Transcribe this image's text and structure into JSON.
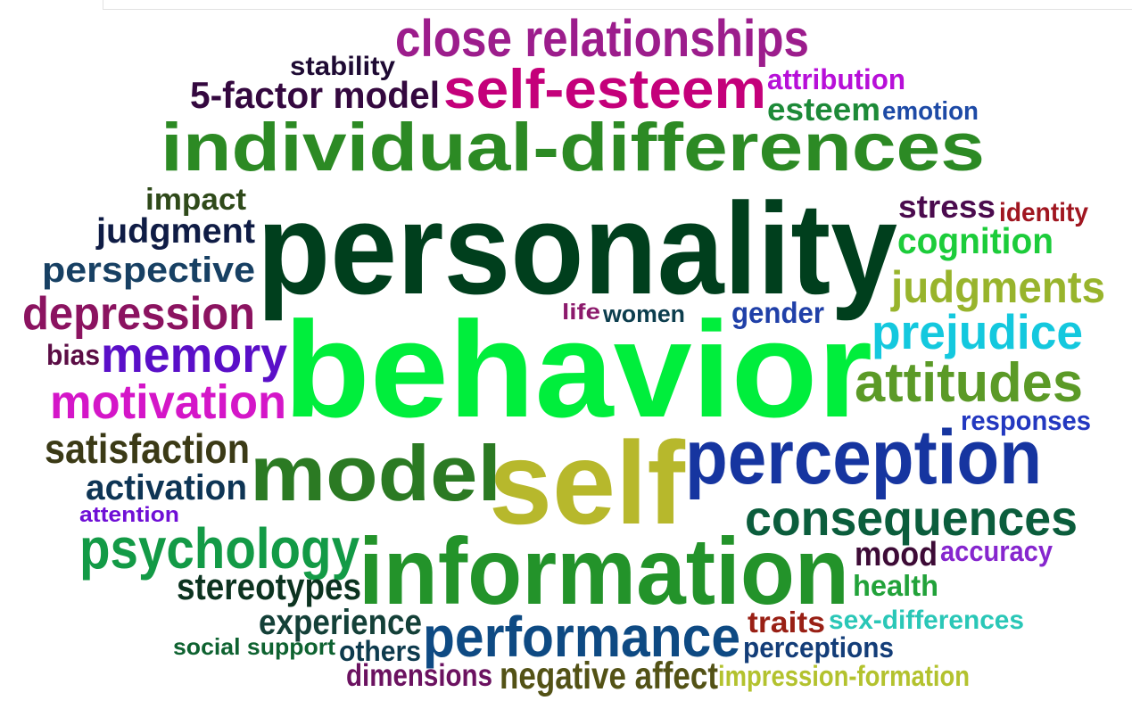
{
  "words": [
    {
      "text": "close relationships",
      "color": "#9c1d8c"
    },
    {
      "text": "stability",
      "color": "#1e0a33"
    },
    {
      "text": "self-esteem",
      "color": "#c4007a"
    },
    {
      "text": "attribution",
      "color": "#b70fd8"
    },
    {
      "text": "5-factor model",
      "color": "#34083f"
    },
    {
      "text": "esteem",
      "color": "#1d8a38"
    },
    {
      "text": "emotion",
      "color": "#1d4aa6"
    },
    {
      "text": "individual-differences",
      "color": "#2c8a24"
    },
    {
      "text": "impact",
      "color": "#2f4a1a"
    },
    {
      "text": "stress",
      "color": "#4b0b4e"
    },
    {
      "text": "identity",
      "color": "#a01620"
    },
    {
      "text": "judgment",
      "color": "#0f1c45"
    },
    {
      "text": "personality",
      "color": "#003f1d"
    },
    {
      "text": "cognition",
      "color": "#1ccc3a"
    },
    {
      "text": "perspective",
      "color": "#174063"
    },
    {
      "text": "judgments",
      "color": "#98b42c"
    },
    {
      "text": "depression",
      "color": "#8b1360"
    },
    {
      "text": "life",
      "color": "#8c1a6c"
    },
    {
      "text": "women",
      "color": "#0c3d4d"
    },
    {
      "text": "gender",
      "color": "#2040a8"
    },
    {
      "text": "prejudice",
      "color": "#14c8de"
    },
    {
      "text": "bias",
      "color": "#5b0d45"
    },
    {
      "text": "memory",
      "color": "#5a0fc8"
    },
    {
      "text": "behavior",
      "color": "#00ee3c"
    },
    {
      "text": "attitudes",
      "color": "#5b9a27"
    },
    {
      "text": "motivation",
      "color": "#d416c8"
    },
    {
      "text": "responses",
      "color": "#2338c0"
    },
    {
      "text": "satisfaction",
      "color": "#3b3a16"
    },
    {
      "text": "model",
      "color": "#2b7a23"
    },
    {
      "text": "self",
      "color": "#b7b82c"
    },
    {
      "text": "perception",
      "color": "#1635a0"
    },
    {
      "text": "activation",
      "color": "#0e3555"
    },
    {
      "text": "attention",
      "color": "#6f0fd6"
    },
    {
      "text": "consequences",
      "color": "#0b5d3c"
    },
    {
      "text": "psychology",
      "color": "#139a46"
    },
    {
      "text": "information",
      "color": "#23932a"
    },
    {
      "text": "mood",
      "color": "#3d0b36"
    },
    {
      "text": "accuracy",
      "color": "#8626ce"
    },
    {
      "text": "stereotypes",
      "color": "#0c3320"
    },
    {
      "text": "health",
      "color": "#22a23a"
    },
    {
      "text": "experience",
      "color": "#144038"
    },
    {
      "text": "traits",
      "color": "#992015"
    },
    {
      "text": "sex-differences",
      "color": "#2ac7b7"
    },
    {
      "text": "social support",
      "color": "#0e6230"
    },
    {
      "text": "others",
      "color": "#0d3a4d"
    },
    {
      "text": "performance",
      "color": "#0e4a83"
    },
    {
      "text": "perceptions",
      "color": "#133d78"
    },
    {
      "text": "dimensions",
      "color": "#6b1260"
    },
    {
      "text": "negative affect",
      "color": "#535216"
    },
    {
      "text": "impression-formation",
      "color": "#b3c22e"
    }
  ]
}
